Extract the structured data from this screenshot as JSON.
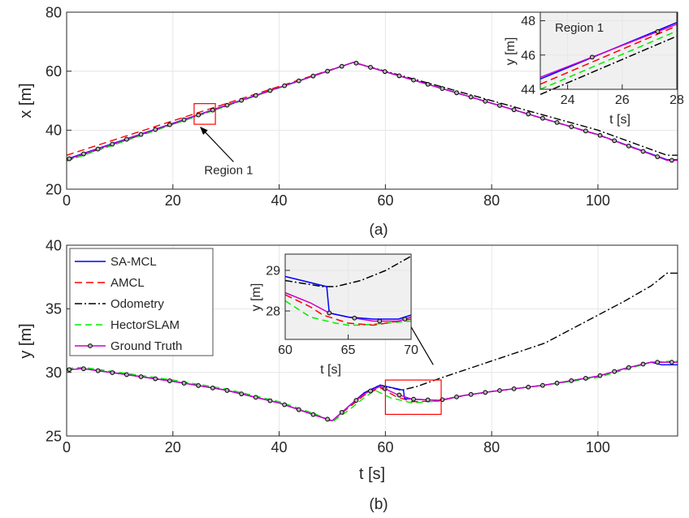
{
  "colors": {
    "sa_mcl": "#0000ff",
    "amcl": "#ff0000",
    "odometry": "#000000",
    "hectorslam": "#00ee00",
    "ground_truth": "#cc00cc",
    "grid": "#e6e6e6",
    "inset_bg": "#f0f0f0",
    "region_box": "#ff0000"
  },
  "chart_data": [
    {
      "id": "a",
      "type": "line",
      "caption": "(a)",
      "xlabel": "",
      "ylabel": "x [m]",
      "xlim": [
        0,
        115
      ],
      "ylim": [
        20,
        80
      ],
      "xticks": [
        0,
        20,
        40,
        60,
        80,
        100
      ],
      "yticks": [
        20,
        40,
        60,
        80
      ],
      "xtick_labels": [
        "0",
        "20",
        "40",
        "60",
        "80",
        "100"
      ],
      "ytick_labels": [
        "20",
        "40",
        "60",
        "80"
      ],
      "grid": true,
      "series": [
        {
          "key": "ground_truth",
          "x": [
            0,
            54,
            100,
            113,
            115
          ],
          "y": [
            30.0,
            63.0,
            38.5,
            29.8,
            29.8
          ]
        },
        {
          "key": "sa_mcl",
          "x": [
            0,
            54,
            100,
            113,
            115
          ],
          "y": [
            30.2,
            63.0,
            38.5,
            30.0,
            30.0
          ]
        },
        {
          "key": "amcl",
          "x": [
            0,
            54,
            100,
            113,
            115
          ],
          "y": [
            31.5,
            63.0,
            38.4,
            29.8,
            29.8
          ]
        },
        {
          "key": "odometry",
          "x": [
            0,
            54,
            100,
            113,
            115
          ],
          "y": [
            29.8,
            63.0,
            40.0,
            31.5,
            31.5
          ]
        },
        {
          "key": "hectorslam",
          "x": [
            0,
            54,
            100,
            113,
            115
          ],
          "y": [
            29.5,
            63.0,
            38.4,
            29.8,
            29.8
          ]
        }
      ],
      "region_box": {
        "x": [
          24,
          28
        ],
        "y": [
          42,
          49
        ]
      },
      "annotation": {
        "text": "Region 1",
        "x": 30.5,
        "y": 26.5,
        "arrow_to_x": 25.2,
        "arrow_to_y": 41.0
      },
      "inset": {
        "title": "Region 1",
        "xlabel": "t [s]",
        "ylabel": "y [m]",
        "xlim": [
          23,
          28
        ],
        "ylim": [
          44,
          48.5
        ],
        "xticks": [
          24,
          26,
          28
        ],
        "yticks": [
          44,
          46,
          48
        ],
        "xtick_labels": [
          "24",
          "26",
          "28"
        ],
        "ytick_labels": [
          "44",
          "46",
          "48"
        ],
        "series": [
          {
            "key": "ground_truth",
            "x": [
              23,
              28
            ],
            "y": [
              44.7,
              47.8
            ]
          },
          {
            "key": "sa_mcl",
            "x": [
              23,
              28
            ],
            "y": [
              44.6,
              47.9
            ]
          },
          {
            "key": "amcl",
            "x": [
              23,
              28
            ],
            "y": [
              44.3,
              47.7
            ]
          },
          {
            "key": "hectorslam",
            "x": [
              23,
              28
            ],
            "y": [
              44.0,
              47.4
            ]
          },
          {
            "key": "odometry",
            "x": [
              23,
              28
            ],
            "y": [
              43.7,
              47.1
            ]
          }
        ]
      }
    },
    {
      "id": "b",
      "type": "line",
      "caption": "(b)",
      "xlabel": "t [s]",
      "ylabel": "y [m]",
      "xlim": [
        0,
        115
      ],
      "ylim": [
        25,
        40
      ],
      "xticks": [
        0,
        20,
        40,
        60,
        80,
        100
      ],
      "yticks": [
        25,
        30,
        35,
        40
      ],
      "xtick_labels": [
        "0",
        "20",
        "40",
        "60",
        "80",
        "100"
      ],
      "ytick_labels": [
        "25",
        "30",
        "35",
        "40"
      ],
      "grid": true,
      "legend": {
        "placement": "top-left",
        "entries": [
          {
            "key": "sa_mcl",
            "label": "SA-MCL"
          },
          {
            "key": "amcl",
            "label": "AMCL"
          },
          {
            "key": "odometry",
            "label": "Odometry"
          },
          {
            "key": "hectorslam",
            "label": "HectorSLAM"
          },
          {
            "key": "ground_truth",
            "label": "Ground Truth"
          }
        ]
      },
      "series": [
        {
          "key": "ground_truth",
          "x": [
            0,
            3,
            10,
            20,
            30,
            40,
            47,
            50,
            53,
            56,
            59,
            62,
            65,
            70,
            75,
            80,
            90,
            100,
            105,
            110,
            115
          ],
          "y": [
            30.2,
            30.3,
            29.9,
            29.3,
            28.6,
            27.6,
            26.6,
            26.2,
            27.3,
            28.3,
            28.9,
            28.3,
            27.9,
            27.8,
            28.2,
            28.5,
            29.0,
            29.7,
            30.3,
            30.8,
            30.8
          ]
        },
        {
          "key": "sa_mcl",
          "x": [
            0,
            3,
            10,
            20,
            30,
            40,
            47,
            50,
            53,
            56,
            59,
            63.4,
            63.6,
            65,
            70,
            75,
            80,
            90,
            100,
            105,
            110,
            112,
            115
          ],
          "y": [
            30.2,
            30.3,
            29.9,
            29.3,
            28.6,
            27.6,
            26.6,
            26.2,
            27.3,
            28.4,
            29.0,
            28.6,
            27.95,
            27.9,
            27.8,
            28.2,
            28.5,
            29.0,
            29.7,
            30.3,
            30.8,
            30.6,
            30.6
          ]
        },
        {
          "key": "amcl",
          "x": [
            0,
            3,
            10,
            20,
            30,
            40,
            47,
            50,
            53,
            56,
            59,
            62,
            65,
            70,
            75,
            80,
            90,
            100,
            105,
            110,
            115
          ],
          "y": [
            30.2,
            30.3,
            29.9,
            29.3,
            28.6,
            27.6,
            26.6,
            26.2,
            27.2,
            28.2,
            28.8,
            28.1,
            27.7,
            27.75,
            28.2,
            28.5,
            29.0,
            29.7,
            30.3,
            30.8,
            30.8
          ]
        },
        {
          "key": "odometry",
          "x": [
            0,
            3,
            10,
            20,
            30,
            40,
            47,
            50,
            53,
            56,
            59,
            63,
            66,
            70,
            75,
            80,
            90,
            100,
            105,
            110,
            113,
            115
          ],
          "y": [
            30.2,
            30.3,
            29.9,
            29.3,
            28.6,
            27.6,
            26.6,
            26.2,
            27.3,
            28.4,
            29.0,
            28.6,
            28.9,
            29.5,
            30.2,
            30.9,
            32.3,
            34.5,
            35.6,
            36.8,
            37.8,
            37.8
          ]
        },
        {
          "key": "hectorslam",
          "x": [
            0,
            3,
            10,
            20,
            30,
            40,
            47,
            50,
            53,
            56,
            58,
            61,
            65,
            70,
            75,
            80,
            90,
            100,
            105,
            110,
            115
          ],
          "y": [
            30.3,
            30.4,
            30.0,
            29.4,
            28.7,
            27.7,
            26.7,
            26.1,
            27.0,
            28.0,
            28.6,
            28.0,
            27.6,
            27.75,
            28.2,
            28.5,
            29.0,
            29.6,
            30.2,
            30.8,
            30.9
          ]
        }
      ],
      "region_box": {
        "x": [
          60,
          70.5
        ],
        "y": [
          26.7,
          29.4
        ]
      },
      "arrow": {
        "from_x": 69.0,
        "from_y": 30.6,
        "to_x": 62.0,
        "to_y": 35.6
      },
      "inset": {
        "title": "",
        "xlabel": "t [s]",
        "ylabel": "y [m]",
        "xlim": [
          60,
          70
        ],
        "ylim": [
          27.3,
          29.4
        ],
        "xticks": [
          60,
          65,
          70
        ],
        "yticks": [
          28,
          29
        ],
        "xtick_labels": [
          "60",
          "65",
          "70"
        ],
        "ytick_labels": [
          "28",
          "29"
        ],
        "series": [
          {
            "key": "odometry",
            "x": [
              60,
              63,
              64,
              66,
              68,
              70
            ],
            "y": [
              28.75,
              28.6,
              28.6,
              28.75,
              29.0,
              29.35
            ]
          },
          {
            "key": "sa_mcl",
            "x": [
              60,
              63.3,
              63.5,
              65,
              67,
              69,
              70
            ],
            "y": [
              28.85,
              28.6,
              27.95,
              27.85,
              27.8,
              27.8,
              27.9
            ]
          },
          {
            "key": "ground_truth",
            "x": [
              60,
              62,
              63.5,
              65,
              67,
              69,
              70
            ],
            "y": [
              28.45,
              28.2,
              27.95,
              27.85,
              27.75,
              27.75,
              27.85
            ]
          },
          {
            "key": "amcl",
            "x": [
              60,
              62,
              63,
              65,
              67,
              69,
              70
            ],
            "y": [
              28.4,
              28.1,
              27.9,
              27.7,
              27.65,
              27.75,
              27.8
            ]
          },
          {
            "key": "hectorslam",
            "x": [
              60,
              62,
              64,
              65,
              66,
              68,
              70
            ],
            "y": [
              28.25,
              27.85,
              27.7,
              27.65,
              27.65,
              27.7,
              27.75
            ]
          }
        ]
      }
    }
  ]
}
